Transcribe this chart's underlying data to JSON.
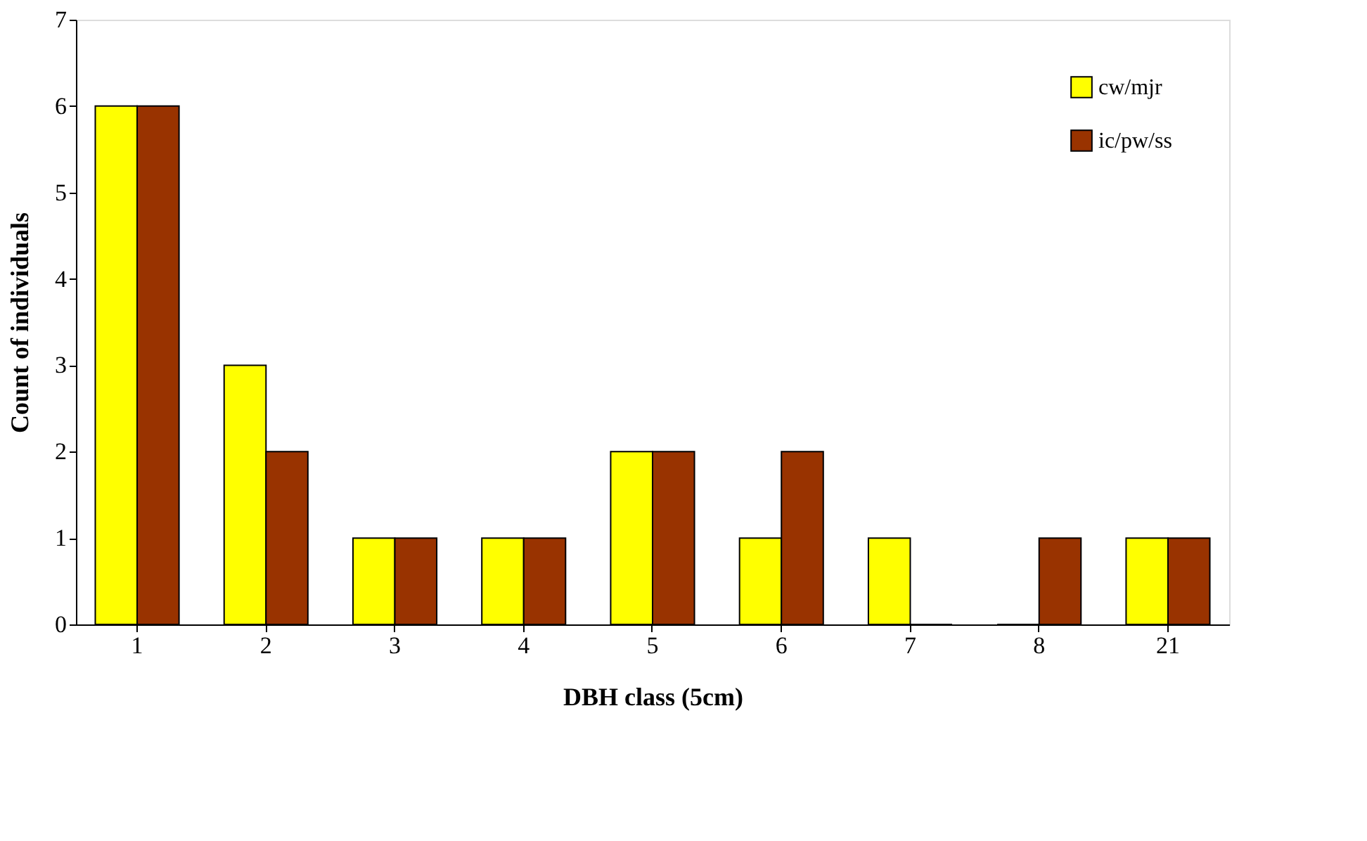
{
  "chart_data": {
    "type": "bar",
    "xlabel": "DBH class (5cm)",
    "ylabel": "Count of individuals",
    "categories": [
      "1",
      "2",
      "3",
      "4",
      "5",
      "6",
      "7",
      "8",
      "21"
    ],
    "series": [
      {
        "name": "cw/mjr",
        "color": "#ffff00",
        "values": [
          6,
          3,
          1,
          1,
          2,
          1,
          1,
          0,
          1
        ]
      },
      {
        "name": "ic/pw/ss",
        "color": "#993300",
        "values": [
          6,
          2,
          1,
          1,
          2,
          2,
          0,
          1,
          1
        ]
      }
    ],
    "ylim": [
      0,
      7
    ],
    "yticks": [
      0,
      1,
      2,
      3,
      4,
      5,
      6,
      7
    ],
    "grid": false,
    "legend": "top right"
  }
}
